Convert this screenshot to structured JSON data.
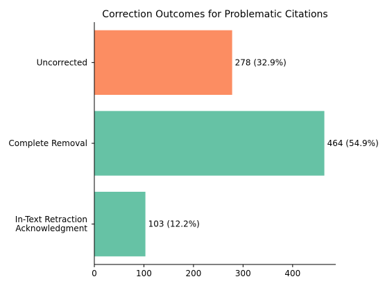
{
  "chart_data": {
    "type": "bar",
    "orientation": "horizontal",
    "title": "Correction Outcomes for Problematic Citations",
    "xlabel": "",
    "ylabel": "",
    "categories": [
      [
        "In-Text Retraction",
        "Acknowledgment"
      ],
      [
        "Complete Removal"
      ],
      [
        "Uncorrected"
      ]
    ],
    "values": [
      103,
      464,
      278
    ],
    "data_labels": [
      "103 (12.2%)",
      "464 (54.9%)",
      "278 (32.9%)"
    ],
    "colors": [
      "#66c2a5",
      "#66c2a5",
      "#fc8d62"
    ],
    "xlim": [
      0,
      487
    ],
    "xticks": [
      0,
      100,
      200,
      300,
      400
    ],
    "grid": false,
    "legend": "none"
  }
}
